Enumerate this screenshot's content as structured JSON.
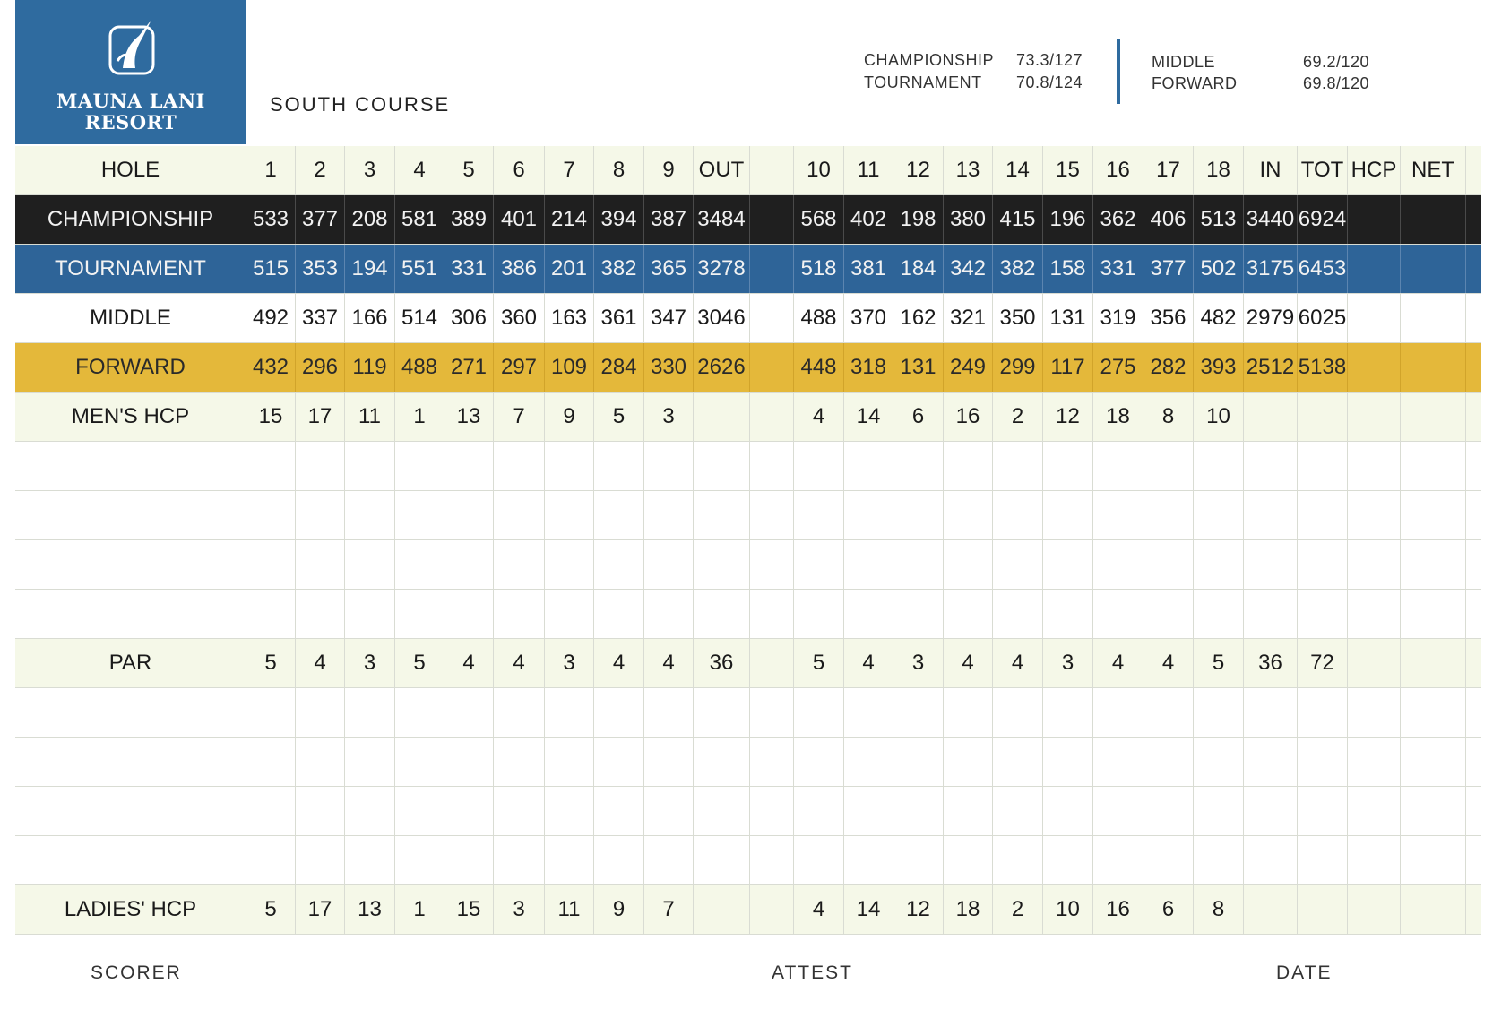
{
  "logo": {
    "line1": "MAUNA LANI",
    "line2": "RESORT"
  },
  "course": "SOUTH COURSE",
  "ratings": [
    {
      "tee": "CHAMPIONSHIP",
      "value": "73.3/127"
    },
    {
      "tee": "TOURNAMENT",
      "value": "70.8/124"
    },
    {
      "tee": "MIDDLE",
      "value": "69.2/120"
    },
    {
      "tee": "FORWARD",
      "value": "69.8/120"
    }
  ],
  "rows": [
    {
      "label": "HOLE",
      "style": "pale",
      "cells": [
        "1",
        "2",
        "3",
        "4",
        "5",
        "6",
        "7",
        "8",
        "9",
        "OUT",
        "10",
        "11",
        "12",
        "13",
        "14",
        "15",
        "16",
        "17",
        "18",
        "IN",
        "TOT",
        "HCP",
        "NET"
      ]
    },
    {
      "label": "CHAMPIONSHIP",
      "style": "black",
      "cells": [
        "533",
        "377",
        "208",
        "581",
        "389",
        "401",
        "214",
        "394",
        "387",
        "3484",
        "568",
        "402",
        "198",
        "380",
        "415",
        "196",
        "362",
        "406",
        "513",
        "3440",
        "6924",
        "",
        ""
      ]
    },
    {
      "label": "TOURNAMENT",
      "style": "blue",
      "cells": [
        "515",
        "353",
        "194",
        "551",
        "331",
        "386",
        "201",
        "382",
        "365",
        "3278",
        "518",
        "381",
        "184",
        "342",
        "382",
        "158",
        "331",
        "377",
        "502",
        "3175",
        "6453",
        "",
        ""
      ]
    },
    {
      "label": "MIDDLE",
      "style": "white",
      "cells": [
        "492",
        "337",
        "166",
        "514",
        "306",
        "360",
        "163",
        "361",
        "347",
        "3046",
        "488",
        "370",
        "162",
        "321",
        "350",
        "131",
        "319",
        "356",
        "482",
        "2979",
        "6025",
        "",
        ""
      ]
    },
    {
      "label": "FORWARD",
      "style": "gold",
      "cells": [
        "432",
        "296",
        "119",
        "488",
        "271",
        "297",
        "109",
        "284",
        "330",
        "2626",
        "448",
        "318",
        "131",
        "249",
        "299",
        "117",
        "275",
        "282",
        "393",
        "2512",
        "5138",
        "",
        ""
      ]
    },
    {
      "label": "MEN'S HCP",
      "style": "pale",
      "cells": [
        "15",
        "17",
        "11",
        "1",
        "13",
        "7",
        "9",
        "5",
        "3",
        "",
        "4",
        "14",
        "6",
        "16",
        "2",
        "12",
        "18",
        "8",
        "10",
        "",
        "",
        "",
        ""
      ]
    },
    {
      "label": "",
      "style": "line",
      "cells": [
        "",
        "",
        "",
        "",
        "",
        "",
        "",
        "",
        "",
        "",
        "",
        "",
        "",
        "",
        "",
        "",
        "",
        "",
        "",
        "",
        "",
        "",
        ""
      ]
    },
    {
      "label": "",
      "style": "line",
      "cells": [
        "",
        "",
        "",
        "",
        "",
        "",
        "",
        "",
        "",
        "",
        "",
        "",
        "",
        "",
        "",
        "",
        "",
        "",
        "",
        "",
        "",
        "",
        ""
      ]
    },
    {
      "label": "",
      "style": "line",
      "cells": [
        "",
        "",
        "",
        "",
        "",
        "",
        "",
        "",
        "",
        "",
        "",
        "",
        "",
        "",
        "",
        "",
        "",
        "",
        "",
        "",
        "",
        "",
        ""
      ]
    },
    {
      "label": "",
      "style": "line",
      "cells": [
        "",
        "",
        "",
        "",
        "",
        "",
        "",
        "",
        "",
        "",
        "",
        "",
        "",
        "",
        "",
        "",
        "",
        "",
        "",
        "",
        "",
        "",
        ""
      ]
    },
    {
      "label": "PAR",
      "style": "pale",
      "cells": [
        "5",
        "4",
        "3",
        "5",
        "4",
        "4",
        "3",
        "4",
        "4",
        "36",
        "5",
        "4",
        "3",
        "4",
        "4",
        "3",
        "4",
        "4",
        "5",
        "36",
        "72",
        "",
        ""
      ]
    },
    {
      "label": "",
      "style": "line",
      "cells": [
        "",
        "",
        "",
        "",
        "",
        "",
        "",
        "",
        "",
        "",
        "",
        "",
        "",
        "",
        "",
        "",
        "",
        "",
        "",
        "",
        "",
        "",
        ""
      ]
    },
    {
      "label": "",
      "style": "line",
      "cells": [
        "",
        "",
        "",
        "",
        "",
        "",
        "",
        "",
        "",
        "",
        "",
        "",
        "",
        "",
        "",
        "",
        "",
        "",
        "",
        "",
        "",
        "",
        ""
      ]
    },
    {
      "label": "",
      "style": "line",
      "cells": [
        "",
        "",
        "",
        "",
        "",
        "",
        "",
        "",
        "",
        "",
        "",
        "",
        "",
        "",
        "",
        "",
        "",
        "",
        "",
        "",
        "",
        "",
        ""
      ]
    },
    {
      "label": "",
      "style": "line",
      "cells": [
        "",
        "",
        "",
        "",
        "",
        "",
        "",
        "",
        "",
        "",
        "",
        "",
        "",
        "",
        "",
        "",
        "",
        "",
        "",
        "",
        "",
        "",
        ""
      ]
    },
    {
      "label": "LADIES' HCP",
      "style": "pale",
      "cells": [
        "5",
        "17",
        "13",
        "1",
        "15",
        "3",
        "11",
        "9",
        "7",
        "",
        "4",
        "14",
        "12",
        "18",
        "2",
        "10",
        "16",
        "6",
        "8",
        "",
        "",
        "",
        ""
      ]
    }
  ],
  "footer": {
    "scorer": "SCORER",
    "attest": "ATTEST",
    "date": "DATE"
  }
}
